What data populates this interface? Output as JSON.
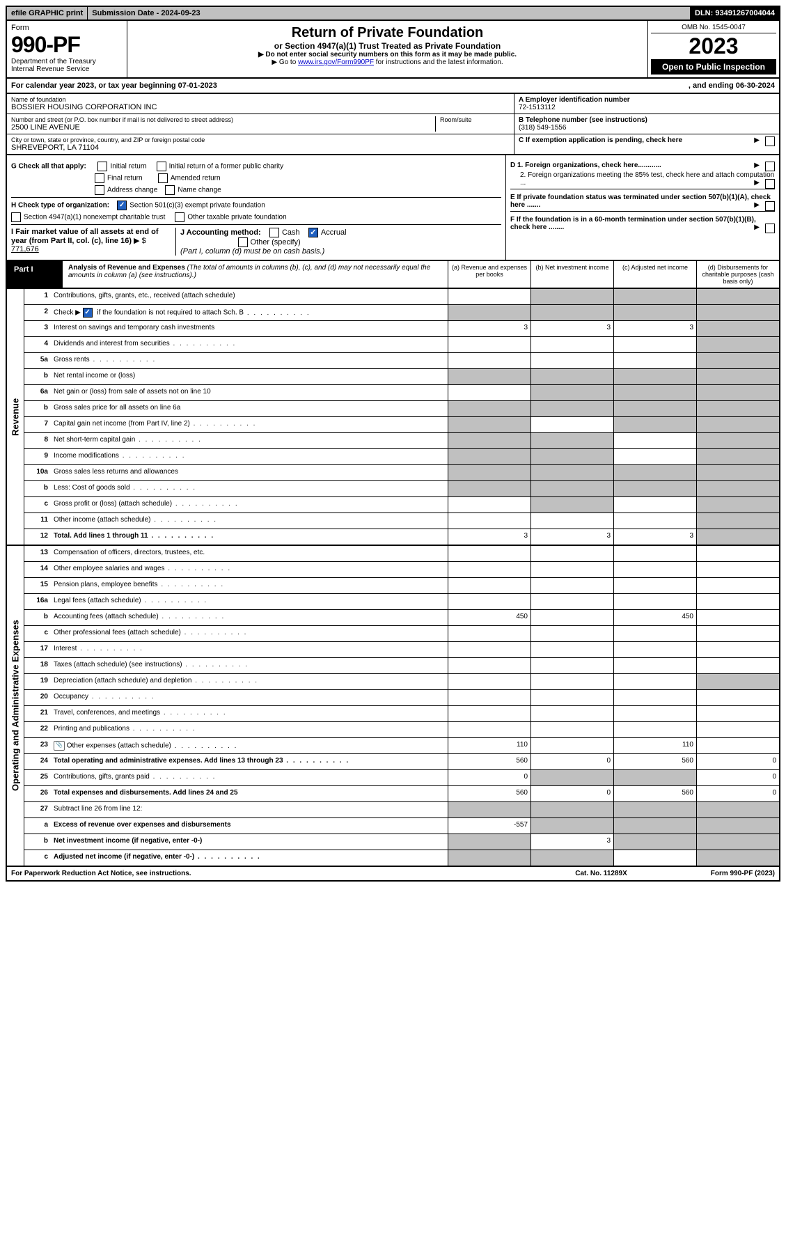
{
  "top": {
    "efile": "efile GRAPHIC print",
    "submission": "Submission Date - 2024-09-23",
    "dln": "DLN: 93491267004044"
  },
  "header": {
    "form_label": "Form",
    "form_num": "990-PF",
    "dept": "Department of the Treasury",
    "irs": "Internal Revenue Service",
    "title": "Return of Private Foundation",
    "subtitle": "or Section 4947(a)(1) Trust Treated as Private Foundation",
    "instr1": "▶ Do not enter social security numbers on this form as it may be made public.",
    "instr2_pre": "▶ Go to ",
    "instr2_link": "www.irs.gov/Form990PF",
    "instr2_post": " for instructions and the latest information.",
    "omb": "OMB No. 1545-0047",
    "year": "2023",
    "open": "Open to Public Inspection"
  },
  "calyear": {
    "text": "For calendar year 2023, or tax year beginning 07-01-2023",
    "end": ", and ending 06-30-2024"
  },
  "info": {
    "name_label": "Name of foundation",
    "name": "BOSSIER HOUSING CORPORATION INC",
    "addr_label": "Number and street (or P.O. box number if mail is not delivered to street address)",
    "addr": "2500 LINE AVENUE",
    "room_label": "Room/suite",
    "city_label": "City or town, state or province, country, and ZIP or foreign postal code",
    "city": "SHREVEPORT, LA  71104",
    "a_label": "A Employer identification number",
    "ein": "72-1513112",
    "b_label": "B Telephone number (see instructions)",
    "phone": "(318) 549-1556",
    "c_label": "C If exemption application is pending, check here"
  },
  "checks": {
    "g_label": "G Check all that apply:",
    "g_opts": [
      "Initial return",
      "Initial return of a former public charity",
      "Final return",
      "Amended return",
      "Address change",
      "Name change"
    ],
    "h_label": "H Check type of organization:",
    "h_501c3": "Section 501(c)(3) exempt private foundation",
    "h_4947": "Section 4947(a)(1) nonexempt charitable trust",
    "h_other": "Other taxable private foundation",
    "i_label": "I Fair market value of all assets at end of year (from Part II, col. (c), line 16)",
    "i_val": "771,676",
    "j_label": "J Accounting method:",
    "j_cash": "Cash",
    "j_accrual": "Accrual",
    "j_other": "Other (specify)",
    "j_note": "(Part I, column (d) must be on cash basis.)",
    "d1": "D 1. Foreign organizations, check here............",
    "d2": "2. Foreign organizations meeting the 85% test, check here and attach computation ...",
    "e": "E  If private foundation status was terminated under section 507(b)(1)(A), check here .......",
    "f": "F  If the foundation is in a 60-month termination under section 507(b)(1)(B), check here ........"
  },
  "part1": {
    "label": "Part I",
    "title": "Analysis of Revenue and Expenses",
    "note": "(The total of amounts in columns (b), (c), and (d) may not necessarily equal the amounts in column (a) (see instructions).)",
    "cols": [
      "(a)  Revenue and expenses per books",
      "(b)  Net investment income",
      "(c)  Adjusted net income",
      "(d)  Disbursements for charitable purposes (cash basis only)"
    ]
  },
  "sides": {
    "revenue": "Revenue",
    "expenses": "Operating and Administrative Expenses"
  },
  "rows": [
    {
      "n": "1",
      "d": "Contributions, gifts, grants, etc., received (attach schedule)",
      "a": "",
      "b": "shade",
      "c": "shade",
      "e": "shade"
    },
    {
      "n": "2",
      "d": "Check ▶ ☑ if the foundation is not required to attach Sch. B",
      "dotted": true,
      "a": "shade",
      "b": "shade",
      "c": "shade",
      "e": "shade"
    },
    {
      "n": "3",
      "d": "Interest on savings and temporary cash investments",
      "a": "3",
      "b": "3",
      "c": "3",
      "e": "shade"
    },
    {
      "n": "4",
      "d": "Dividends and interest from securities",
      "dotted": true,
      "a": "",
      "b": "",
      "c": "",
      "e": "shade"
    },
    {
      "n": "5a",
      "d": "Gross rents",
      "dotted": true,
      "a": "",
      "b": "",
      "c": "",
      "e": "shade"
    },
    {
      "n": "b",
      "d": "Net rental income or (loss)",
      "a": "shade",
      "b": "shade",
      "c": "shade",
      "e": "shade"
    },
    {
      "n": "6a",
      "d": "Net gain or (loss) from sale of assets not on line 10",
      "a": "",
      "b": "shade",
      "c": "shade",
      "e": "shade"
    },
    {
      "n": "b",
      "d": "Gross sales price for all assets on line 6a",
      "a": "shade",
      "b": "shade",
      "c": "shade",
      "e": "shade"
    },
    {
      "n": "7",
      "d": "Capital gain net income (from Part IV, line 2)",
      "dotted": true,
      "a": "shade",
      "b": "",
      "c": "shade",
      "e": "shade"
    },
    {
      "n": "8",
      "d": "Net short-term capital gain",
      "dotted": true,
      "a": "shade",
      "b": "shade",
      "c": "",
      "e": "shade"
    },
    {
      "n": "9",
      "d": "Income modifications",
      "dotted": true,
      "a": "shade",
      "b": "shade",
      "c": "",
      "e": "shade"
    },
    {
      "n": "10a",
      "d": "Gross sales less returns and allowances",
      "a": "shade",
      "b": "shade",
      "c": "shade",
      "e": "shade"
    },
    {
      "n": "b",
      "d": "Less: Cost of goods sold",
      "dotted": true,
      "a": "shade",
      "b": "shade",
      "c": "shade",
      "e": "shade"
    },
    {
      "n": "c",
      "d": "Gross profit or (loss) (attach schedule)",
      "dotted": true,
      "a": "",
      "b": "shade",
      "c": "",
      "e": "shade"
    },
    {
      "n": "11",
      "d": "Other income (attach schedule)",
      "dotted": true,
      "a": "",
      "b": "",
      "c": "",
      "e": "shade"
    },
    {
      "n": "12",
      "d": "Total. Add lines 1 through 11",
      "dotted": true,
      "bold": true,
      "a": "3",
      "b": "3",
      "c": "3",
      "e": "shade"
    },
    {
      "sec": "expenses"
    },
    {
      "n": "13",
      "d": "Compensation of officers, directors, trustees, etc.",
      "a": "",
      "b": "",
      "c": "",
      "e": ""
    },
    {
      "n": "14",
      "d": "Other employee salaries and wages",
      "dotted": true,
      "a": "",
      "b": "",
      "c": "",
      "e": ""
    },
    {
      "n": "15",
      "d": "Pension plans, employee benefits",
      "dotted": true,
      "a": "",
      "b": "",
      "c": "",
      "e": ""
    },
    {
      "n": "16a",
      "d": "Legal fees (attach schedule)",
      "dotted": true,
      "a": "",
      "b": "",
      "c": "",
      "e": ""
    },
    {
      "n": "b",
      "d": "Accounting fees (attach schedule)",
      "dotted": true,
      "a": "450",
      "b": "",
      "c": "450",
      "e": ""
    },
    {
      "n": "c",
      "d": "Other professional fees (attach schedule)",
      "dotted": true,
      "a": "",
      "b": "",
      "c": "",
      "e": ""
    },
    {
      "n": "17",
      "d": "Interest",
      "dotted": true,
      "a": "",
      "b": "",
      "c": "",
      "e": ""
    },
    {
      "n": "18",
      "d": "Taxes (attach schedule) (see instructions)",
      "dotted": true,
      "a": "",
      "b": "",
      "c": "",
      "e": ""
    },
    {
      "n": "19",
      "d": "Depreciation (attach schedule) and depletion",
      "dotted": true,
      "a": "",
      "b": "",
      "c": "",
      "e": "shade"
    },
    {
      "n": "20",
      "d": "Occupancy",
      "dotted": true,
      "a": "",
      "b": "",
      "c": "",
      "e": ""
    },
    {
      "n": "21",
      "d": "Travel, conferences, and meetings",
      "dotted": true,
      "a": "",
      "b": "",
      "c": "",
      "e": ""
    },
    {
      "n": "22",
      "d": "Printing and publications",
      "dotted": true,
      "a": "",
      "b": "",
      "c": "",
      "e": ""
    },
    {
      "n": "23",
      "d": "Other expenses (attach schedule)",
      "dotted": true,
      "icon": true,
      "a": "110",
      "b": "",
      "c": "110",
      "e": ""
    },
    {
      "n": "24",
      "d": "Total operating and administrative expenses. Add lines 13 through 23",
      "dotted": true,
      "bold": true,
      "a": "560",
      "b": "0",
      "c": "560",
      "e": "0"
    },
    {
      "n": "25",
      "d": "Contributions, gifts, grants paid",
      "dotted": true,
      "a": "0",
      "b": "shade",
      "c": "shade",
      "e": "0"
    },
    {
      "n": "26",
      "d": "Total expenses and disbursements. Add lines 24 and 25",
      "bold": true,
      "a": "560",
      "b": "0",
      "c": "560",
      "e": "0"
    },
    {
      "n": "27",
      "d": "Subtract line 26 from line 12:",
      "a": "shade",
      "b": "shade",
      "c": "shade",
      "e": "shade"
    },
    {
      "n": "a",
      "d": "Excess of revenue over expenses and disbursements",
      "bold": true,
      "a": "-557",
      "b": "shade",
      "c": "shade",
      "e": "shade"
    },
    {
      "n": "b",
      "d": "Net investment income (if negative, enter -0-)",
      "bold": true,
      "a": "shade",
      "b": "3",
      "c": "shade",
      "e": "shade"
    },
    {
      "n": "c",
      "d": "Adjusted net income (if negative, enter -0-)",
      "dotted": true,
      "bold": true,
      "a": "shade",
      "b": "shade",
      "c": "",
      "e": "shade"
    }
  ],
  "footer": {
    "left": "For Paperwork Reduction Act Notice, see instructions.",
    "mid": "Cat. No. 11289X",
    "right": "Form 990-PF (2023)"
  }
}
